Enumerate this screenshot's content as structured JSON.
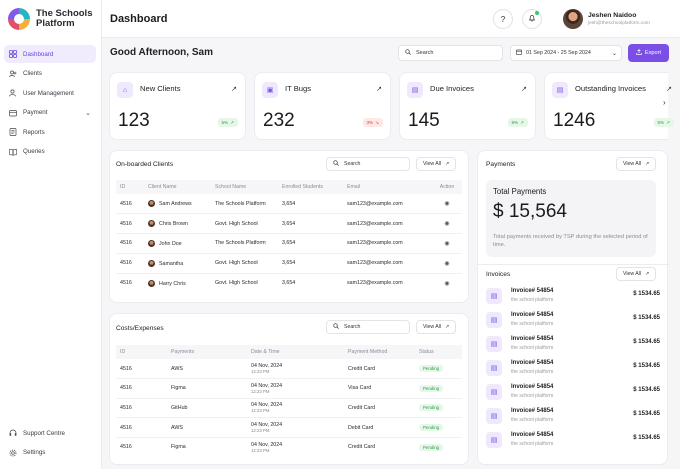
{
  "brand": {
    "name": "The Schools Platform"
  },
  "sidebar": {
    "items": [
      {
        "label": "Dashboard"
      },
      {
        "label": "Clients"
      },
      {
        "label": "User Management"
      },
      {
        "label": "Payment"
      },
      {
        "label": "Reports"
      },
      {
        "label": "Queries"
      }
    ],
    "bottom": [
      {
        "label": "Support Centre"
      },
      {
        "label": "Settings"
      }
    ]
  },
  "header": {
    "title": "Dashboard",
    "user_name": "Jeshen Naidoo",
    "user_email": "jesh@theschoolplatform.com"
  },
  "toolbar": {
    "greeting": "Good Afternoon, Sam",
    "search_placeholder": "Search",
    "date_range": "01 Sep 2024 - 25 Sep 2024",
    "export_label": "Export"
  },
  "stats": [
    {
      "title": "New Clients",
      "value": "123",
      "change": "5%",
      "trend": "up"
    },
    {
      "title": "IT Bugs",
      "value": "232",
      "change": "3%",
      "trend": "down"
    },
    {
      "title": "Due Invoices",
      "value": "145",
      "change": "9%",
      "trend": "up"
    },
    {
      "title": "Outstanding Invoices",
      "value": "1246",
      "change": "5%",
      "trend": "up"
    }
  ],
  "clients": {
    "title": "On-boarded Clients",
    "search": "Search",
    "view_all": "View All",
    "columns": [
      "ID",
      "Client Name",
      "School Name",
      "Enrolled Students",
      "Email",
      "Action"
    ],
    "rows": [
      {
        "id": "4516",
        "name": "Sam Andrews",
        "school": "The Schools Platform",
        "students": "3,654",
        "email": "sam123@example.com"
      },
      {
        "id": "4516",
        "name": "Chris Brown",
        "school": "Govt. High School",
        "students": "3,654",
        "email": "sam123@example.com"
      },
      {
        "id": "4516",
        "name": "John Doe",
        "school": "The Schools Platform",
        "students": "3,654",
        "email": "sam123@example.com"
      },
      {
        "id": "4516",
        "name": "Samantha",
        "school": "Govt. High School",
        "students": "3,654",
        "email": "sam123@example.com"
      },
      {
        "id": "4516",
        "name": "Harry Chris",
        "school": "Govt. High School",
        "students": "3,654",
        "email": "sam123@example.com"
      }
    ]
  },
  "costs": {
    "title": "Costs/Expenses",
    "search": "Search",
    "view_all": "View All",
    "columns": [
      "ID",
      "Payments",
      "Date & Time",
      "Payment Method",
      "Status"
    ],
    "rows": [
      {
        "id": "4516",
        "payment": "AWS",
        "date": "04 Nov, 2024",
        "time": "12:23 PM",
        "method": "Credit Card",
        "status": "Pending"
      },
      {
        "id": "4516",
        "payment": "Figma",
        "date": "04 Nov, 2024",
        "time": "12:23 PM",
        "method": "Visa Card",
        "status": "Pending"
      },
      {
        "id": "4516",
        "payment": "GitHub",
        "date": "04 Nov, 2024",
        "time": "12:23 PM",
        "method": "Credit Card",
        "status": "Pending"
      },
      {
        "id": "4516",
        "payment": "AWS",
        "date": "04 Nov, 2024",
        "time": "12:23 PM",
        "method": "Debit Card",
        "status": "Pending"
      },
      {
        "id": "4516",
        "payment": "Figma",
        "date": "04 Nov, 2024",
        "time": "12:23 PM",
        "method": "Credit Card",
        "status": "Pending"
      }
    ]
  },
  "payments": {
    "title": "Payments",
    "view_all": "View All",
    "total_title": "Total Payments",
    "total_amount": "$ 15,564",
    "description": "Total payments received by TSP during the selected period of time."
  },
  "invoices": {
    "title": "Invoices",
    "view_all": "View All",
    "items": [
      {
        "name": "Invoice# 54854",
        "sub": "the school platform",
        "amount": "$ 1534.65"
      },
      {
        "name": "Invoice# 54854",
        "sub": "the school platform",
        "amount": "$ 1534.65"
      },
      {
        "name": "Invoice# 54854",
        "sub": "the school platform",
        "amount": "$ 1534.65"
      },
      {
        "name": "Invoice# 54854",
        "sub": "the school platform",
        "amount": "$ 1534.65"
      },
      {
        "name": "Invoice# 54854",
        "sub": "the school platform",
        "amount": "$ 1534.65"
      },
      {
        "name": "Invoice# 54854",
        "sub": "the school platform",
        "amount": "$ 1534.65"
      },
      {
        "name": "Invoice# 54854",
        "sub": "the school platform",
        "amount": "$ 1534.65"
      }
    ]
  },
  "colors": {
    "accent": "#7b4ee6",
    "success": "#2e9d4b",
    "danger": "#d33c3c"
  }
}
